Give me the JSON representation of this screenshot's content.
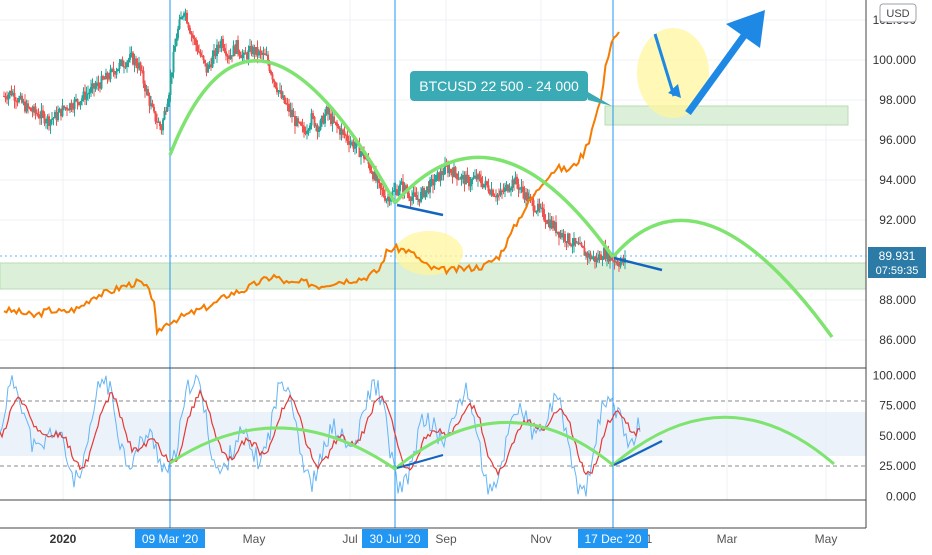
{
  "chart_data": {
    "type": "line",
    "symbol": "",
    "currency_label": "USD",
    "price_axis": {
      "min": 84.6,
      "max": 103.0,
      "ticks": [
        "102.000",
        "100.000",
        "98.000",
        "96.000",
        "94.000",
        "92.000",
        "88.000",
        "86.000"
      ]
    },
    "osc_axis": {
      "min": -3,
      "max": 106,
      "ticks": [
        "100.000",
        "75.000",
        "50.000",
        "25.000",
        "0.000"
      ]
    },
    "x_axis": {
      "labels": [
        "2020",
        "May",
        "Jul",
        "Sep",
        "Nov",
        "Mar",
        "May"
      ],
      "highlight_labels": [
        "09 Mar '20",
        "30 Jul '20",
        "17 Dec '20"
      ],
      "partial_label": "1"
    },
    "last_price": "89.931",
    "countdown": "07:59:35",
    "annotation": "BTCUSD 22 500 - 24 000",
    "colors": {
      "candle_up": "#26a69a",
      "candle_down": "#ef5350",
      "btc_overlay": "#f57c00",
      "arc": "#7ee36f",
      "vline": "#2196f3",
      "zone": "#dff0d8",
      "trend": "#1565c0",
      "highlight": "#fff59d",
      "stoch_k": "#64b5f6",
      "stoch_d": "#e53935",
      "stoch_band": "#e3f2fd",
      "callout": "#3aaab5",
      "price_tag": "#2c7ba7"
    },
    "price_series_ohlc_close": [
      [
        0,
        98.2
      ],
      [
        0.5,
        98.4
      ],
      [
        1,
        98.0
      ],
      [
        1.5,
        97.6
      ],
      [
        2,
        97.4
      ],
      [
        2.5,
        97.2
      ],
      [
        3,
        97.0
      ],
      [
        3.5,
        97.2
      ],
      [
        4,
        97.6
      ],
      [
        4.5,
        97.8
      ],
      [
        5,
        98.0
      ],
      [
        5.5,
        98.3
      ],
      [
        6,
        98.6
      ],
      [
        6.5,
        98.9
      ],
      [
        7,
        99.2
      ],
      [
        7.5,
        99.6
      ],
      [
        8,
        99.9
      ],
      [
        8.5,
        100.1
      ],
      [
        9,
        99.7
      ],
      [
        9.5,
        98.4
      ],
      [
        10,
        97.2
      ],
      [
        10.5,
        96.6
      ],
      [
        11,
        98.5
      ],
      [
        11.5,
        101.2
      ],
      [
        12,
        102.6
      ],
      [
        12.5,
        101.3
      ],
      [
        13,
        100.4
      ],
      [
        13.5,
        99.5
      ],
      [
        14,
        100.2
      ],
      [
        14.5,
        101.0
      ],
      [
        15,
        100.2
      ],
      [
        15.5,
        100.7
      ],
      [
        16,
        100.1
      ],
      [
        16.5,
        100.5
      ],
      [
        17,
        100.3
      ],
      [
        17.5,
        100.1
      ],
      [
        18,
        99.0
      ],
      [
        18.5,
        98.1
      ],
      [
        19,
        97.5
      ],
      [
        19.5,
        96.8
      ],
      [
        20,
        96.4
      ],
      [
        20.5,
        97.1
      ],
      [
        21,
        96.6
      ],
      [
        21.5,
        97.4
      ],
      [
        22,
        96.8
      ],
      [
        22.5,
        96.4
      ],
      [
        23,
        96.0
      ],
      [
        23.5,
        95.6
      ],
      [
        24,
        95.2
      ],
      [
        24.5,
        94.5
      ],
      [
        25,
        93.6
      ],
      [
        25.5,
        93.1
      ],
      [
        26,
        93.4
      ],
      [
        26.5,
        93.7
      ],
      [
        27,
        93.3
      ],
      [
        27.5,
        93.0
      ],
      [
        28,
        93.4
      ],
      [
        28.5,
        93.8
      ],
      [
        29,
        94.2
      ],
      [
        29.5,
        94.6
      ],
      [
        30,
        94.4
      ],
      [
        30.5,
        94.1
      ],
      [
        31,
        93.9
      ],
      [
        31.5,
        94.1
      ],
      [
        32,
        93.8
      ],
      [
        32.5,
        93.5
      ],
      [
        33,
        93.2
      ],
      [
        33.5,
        93.6
      ],
      [
        34,
        94.0
      ],
      [
        34.5,
        93.5
      ],
      [
        35,
        93.0
      ],
      [
        35.5,
        92.6
      ],
      [
        36,
        92.2
      ],
      [
        36.5,
        91.8
      ],
      [
        37,
        91.4
      ],
      [
        37.5,
        91.1
      ],
      [
        38,
        90.8
      ],
      [
        38.5,
        90.5
      ],
      [
        39,
        90.2
      ],
      [
        39.5,
        90.0
      ],
      [
        40,
        90.4
      ],
      [
        40.5,
        90.1
      ],
      [
        41,
        89.9
      ]
    ],
    "btc_overlay_path": [
      [
        0,
        87.5
      ],
      [
        1,
        87.4
      ],
      [
        2,
        87.2
      ],
      [
        3,
        87.5
      ],
      [
        4,
        87.4
      ],
      [
        5,
        87.6
      ],
      [
        6,
        88.2
      ],
      [
        7,
        88.4
      ],
      [
        8,
        88.7
      ],
      [
        9,
        88.9
      ],
      [
        9.5,
        88.6
      ],
      [
        10,
        88.0
      ],
      [
        10.2,
        86.2
      ],
      [
        10.5,
        86.6
      ],
      [
        11,
        86.9
      ],
      [
        12,
        87.2
      ],
      [
        13,
        87.5
      ],
      [
        14,
        87.8
      ],
      [
        15,
        88.3
      ],
      [
        16,
        88.5
      ],
      [
        17,
        88.9
      ],
      [
        18,
        89.2
      ],
      [
        19,
        88.8
      ],
      [
        20,
        88.9
      ],
      [
        21,
        88.7
      ],
      [
        22,
        88.9
      ],
      [
        23,
        89.0
      ],
      [
        24,
        89.1
      ],
      [
        25,
        89.5
      ],
      [
        25.5,
        90.4
      ],
      [
        26,
        90.6
      ],
      [
        26.8,
        90.5
      ],
      [
        27.5,
        90.2
      ],
      [
        28,
        89.8
      ],
      [
        28.5,
        89.6
      ],
      [
        29,
        89.5
      ],
      [
        30,
        89.5
      ],
      [
        31,
        89.6
      ],
      [
        32,
        89.7
      ],
      [
        33,
        90.2
      ],
      [
        33.6,
        91.0
      ],
      [
        34,
        91.6
      ],
      [
        34.5,
        92.3
      ],
      [
        35,
        92.9
      ],
      [
        35.5,
        93.4
      ],
      [
        36,
        94.0
      ],
      [
        36.5,
        94.4
      ],
      [
        37,
        94.6
      ],
      [
        37.5,
        94.5
      ],
      [
        38,
        94.7
      ],
      [
        38.6,
        95.3
      ],
      [
        39,
        96.0
      ],
      [
        39.4,
        97.2
      ],
      [
        39.8,
        98.0
      ],
      [
        40.1,
        99.6
      ],
      [
        40.5,
        101.0
      ],
      [
        41,
        101.4
      ]
    ],
    "stoch_k": [],
    "stoch_d": []
  }
}
